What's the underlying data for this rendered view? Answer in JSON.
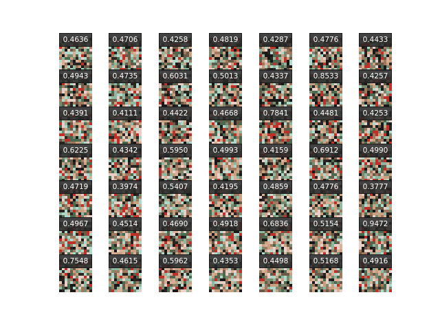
{
  "grid": {
    "rows": [
      [
        "0.4636",
        "0.4706",
        "0.4258",
        "0.4819",
        "0.4287",
        "0.4776",
        "0.4433"
      ],
      [
        "0.4943",
        "0.4735",
        "0.6031",
        "0.5013",
        "0.4337",
        "0.8533",
        "0.4257"
      ],
      [
        "0.4391",
        "0.4111",
        "0.4422",
        "0.4668",
        "0.7841",
        "0.4481",
        "0.4253"
      ],
      [
        "0.6225",
        "0.4342",
        "0.5950",
        "0.4993",
        "0.4159",
        "0.6912",
        "0.4990"
      ],
      [
        "0.4719",
        "0.3974",
        "0.5407",
        "0.4195",
        "0.4859",
        "0.4776",
        "0.3777"
      ],
      [
        "0.4967",
        "0.4514",
        "0.4690",
        "0.4918",
        "0.6836",
        "0.5154",
        "0.9472"
      ],
      [
        "0.7548",
        "0.4615",
        "0.5962",
        "0.4353",
        "0.4498",
        "0.5168",
        "0.4916"
      ]
    ]
  },
  "palette": [
    "#2a2520",
    "#6b5a48",
    "#a07860",
    "#c9a080",
    "#8fb8a0",
    "#b0d8c8",
    "#c0302a",
    "#e8d0c8",
    "#4a6a50",
    "#181818",
    "#d8b098",
    "#7a8a70"
  ]
}
